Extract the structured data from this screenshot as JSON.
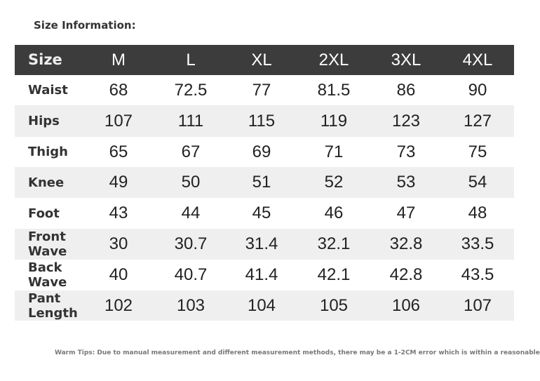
{
  "title": "Size Information:",
  "table": {
    "header": [
      "Size",
      "M",
      "L",
      "XL",
      "2XL",
      "3XL",
      "4XL"
    ],
    "rows": [
      [
        "Waist",
        "68",
        "72.5",
        "77",
        "81.5",
        "86",
        "90"
      ],
      [
        "Hips",
        "107",
        "111",
        "115",
        "119",
        "123",
        "127"
      ],
      [
        "Thigh",
        "65",
        "67",
        "69",
        "71",
        "73",
        "75"
      ],
      [
        "Knee",
        "49",
        "50",
        "51",
        "52",
        "53",
        "54"
      ],
      [
        "Foot",
        "43",
        "44",
        "45",
        "46",
        "47",
        "48"
      ],
      [
        "Front Wave",
        "30",
        "30.7",
        "31.4",
        "32.1",
        "32.8",
        "33.5"
      ],
      [
        "Back Wave",
        "40",
        "40.7",
        "41.4",
        "42.1",
        "42.8",
        "43.5"
      ],
      [
        "Pant Length",
        "102",
        "103",
        "104",
        "105",
        "106",
        "107"
      ]
    ]
  },
  "footer": "Warm Tips: Due to manual measurement and different measurement methods, there may be a 1-2CM error which is within a reasonable"
}
